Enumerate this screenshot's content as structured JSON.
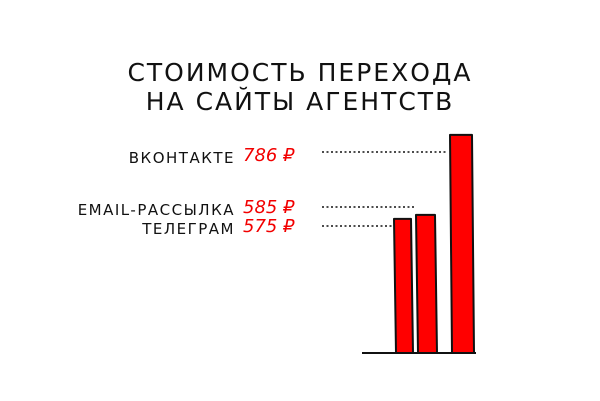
{
  "chart_data": {
    "type": "bar",
    "title": [
      "СТОИМОСТЬ ПЕРЕХОДА",
      "НА САЙТЫ АГЕНТСТВ"
    ],
    "categories": [
      "ТЕЛЕГРАМ",
      "EMAIL-РАССЫЛКА",
      "ВКОНТАКТЕ"
    ],
    "values": [
      575,
      585,
      786
    ],
    "value_labels": [
      "575 ₽",
      "585 ₽",
      "786 ₽"
    ],
    "unit": "₽",
    "bar_color": "#ff0000",
    "label_color": "#f20000",
    "grid": false
  }
}
